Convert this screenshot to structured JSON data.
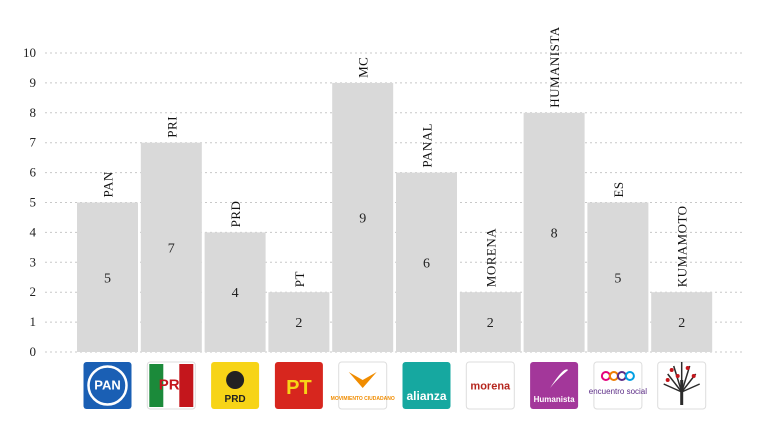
{
  "chart_data": {
    "type": "bar",
    "categories": [
      "PAN",
      "PRI",
      "PRD",
      "PT",
      "MC",
      "PANAL",
      "MORENA",
      "HUMANISTA",
      "ES",
      "KUMAMOTO"
    ],
    "values": [
      5,
      7,
      4,
      2,
      9,
      6,
      2,
      8,
      5,
      2
    ],
    "ylim": [
      0,
      10
    ],
    "yticks": [
      "0",
      "1",
      "2",
      "3",
      "4",
      "5",
      "6",
      "7",
      "8",
      "9",
      "10"
    ],
    "grid": true,
    "bar_color": "#d9d9d9",
    "grid_color": "#c8c8c8"
  },
  "logos": [
    {
      "icon": "pan-logo",
      "text": "PAN",
      "bg": "#1a5fb4",
      "fg": "#ffffff"
    },
    {
      "icon": "pri-logo",
      "text": "PRI",
      "bg": "#ffffff",
      "fg": "#c4161c"
    },
    {
      "icon": "prd-logo",
      "text": "PRD",
      "bg": "#f7d417",
      "fg": "#222222"
    },
    {
      "icon": "pt-logo",
      "text": "PT",
      "bg": "#d7261e",
      "fg": "#f7d417"
    },
    {
      "icon": "mc-logo",
      "text": "MOVIMIENTO CIUDADANO",
      "bg": "#ffffff",
      "fg": "#f08c00"
    },
    {
      "icon": "panal-logo",
      "text": "alianza",
      "bg": "#16a8a0",
      "fg": "#ffffff"
    },
    {
      "icon": "morena-logo",
      "text": "morena",
      "bg": "#ffffff",
      "fg": "#b5261e"
    },
    {
      "icon": "humanista-logo",
      "text": "Humanista",
      "bg": "#a3379a",
      "fg": "#ffffff"
    },
    {
      "icon": "es-logo",
      "text": "encuentro social",
      "bg": "#ffffff",
      "fg": "#5b2c86"
    },
    {
      "icon": "kumamoto-logo",
      "text": "",
      "bg": "#ffffff",
      "fg": "#2b2b2b"
    }
  ]
}
